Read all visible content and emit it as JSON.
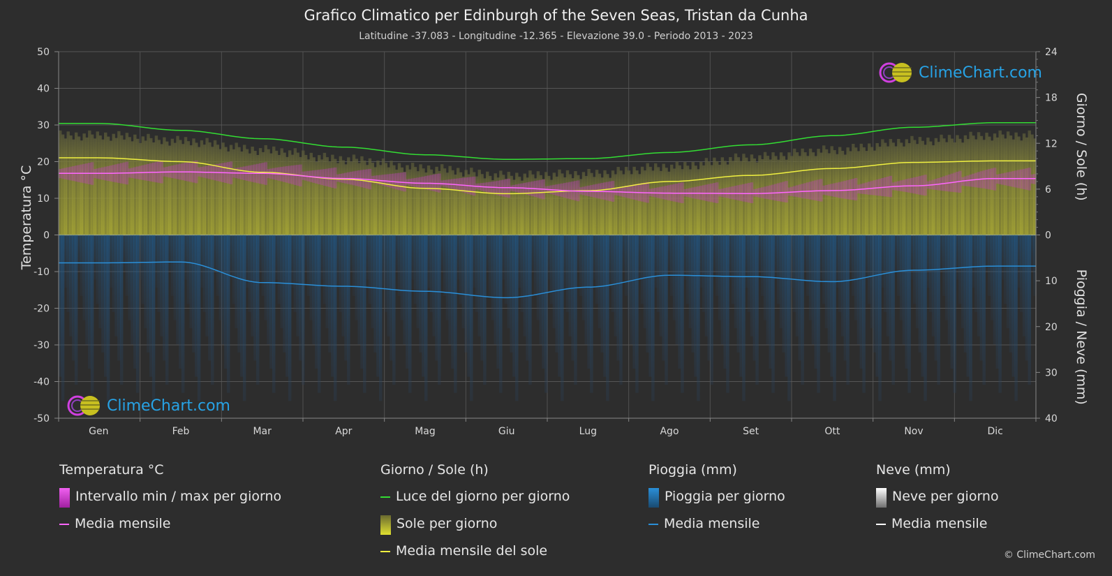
{
  "title": "Grafico Climatico per Edinburgh of the Seven Seas,  Tristan da Cunha",
  "subtitle": "Latitudine -37.083 - Longitudine -12.365 - Elevazione 39.0 - Periodo 2013 - 2023",
  "logo_text": "ClimeChart.com",
  "copyright": "© ClimeChart.com",
  "legend": {
    "temperature": {
      "header": "Temperatura °C",
      "range": "Intervallo min / max per giorno",
      "mean": "Media mensile",
      "range_color": "#e040e0",
      "mean_color": "#ff66ff"
    },
    "sun": {
      "header": "Giorno / Sole (h)",
      "daylight": "Luce del giorno per giorno",
      "sunshine": "Sole per giorno",
      "mean": "Media mensile del sole",
      "daylight_color": "#33dd33",
      "sunshine_color": "#d8d830",
      "mean_color": "#f0f040"
    },
    "rain": {
      "header": "Pioggia (mm)",
      "daily": "Pioggia per giorno",
      "mean": "Media mensile",
      "color": "#2a8fd8"
    },
    "snow": {
      "header": "Neve (mm)",
      "daily": "Neve per giorno",
      "mean": "Media mensile",
      "color": "#ffffff"
    }
  },
  "chart_data": {
    "type": "line",
    "categories": [
      "Gen",
      "Feb",
      "Mar",
      "Apr",
      "Mag",
      "Giu",
      "Lug",
      "Ago",
      "Set",
      "Ott",
      "Nov",
      "Dic"
    ],
    "axes": {
      "left": {
        "label": "Temperatura °C",
        "min": -50,
        "max": 50,
        "ticks": [
          50,
          40,
          30,
          20,
          10,
          0,
          -10,
          -20,
          -30,
          -40,
          -50
        ]
      },
      "right_top": {
        "label": "Giorno / Sole (h)",
        "min": 0,
        "max": 24,
        "ticks": [
          24,
          18,
          12,
          6,
          0
        ]
      },
      "right_bottom": {
        "label": "Pioggia / Neve (mm)",
        "min": 0,
        "max": 40,
        "ticks": [
          10,
          20,
          30,
          40
        ]
      }
    },
    "grid": true,
    "series": [
      {
        "name": "Luce del giorno per giorno",
        "axis": "right_top",
        "values": [
          14.6,
          13.7,
          12.6,
          11.5,
          10.5,
          9.9,
          10.0,
          10.8,
          11.8,
          13.0,
          14.1,
          14.7
        ]
      },
      {
        "name": "Media mensile del sole",
        "axis": "right_top",
        "values": [
          10.1,
          9.6,
          8.2,
          7.3,
          6.1,
          5.4,
          5.8,
          7.0,
          7.8,
          8.7,
          9.5,
          9.7
        ]
      },
      {
        "name": "Temperatura media mensile",
        "axis": "left",
        "values": [
          16.8,
          17.2,
          16.8,
          15.4,
          14.1,
          12.9,
          11.9,
          11.4,
          11.3,
          12.1,
          13.4,
          15.4
        ]
      },
      {
        "name": "Pioggia media mensile",
        "axis": "right_bottom",
        "values": [
          6.1,
          5.9,
          10.4,
          11.2,
          12.3,
          13.7,
          11.4,
          8.8,
          9.1,
          10.2,
          7.7,
          6.8
        ]
      }
    ],
    "sunshine_band_top": [
      28.5,
      27.0,
      24.5,
      22.0,
      19.5,
      17.5,
      18.0,
      20.0,
      22.5,
      24.5,
      27.0,
      28.5
    ],
    "temp_band": {
      "max": [
        19,
        19.5,
        19,
        17.5,
        16,
        14.5,
        14,
        13.5,
        13.5,
        14.5,
        15.5,
        17.5
      ],
      "min": [
        14.5,
        15,
        14.5,
        13.5,
        12.5,
        11,
        10,
        9.5,
        9.5,
        10,
        11.5,
        13
      ]
    }
  }
}
